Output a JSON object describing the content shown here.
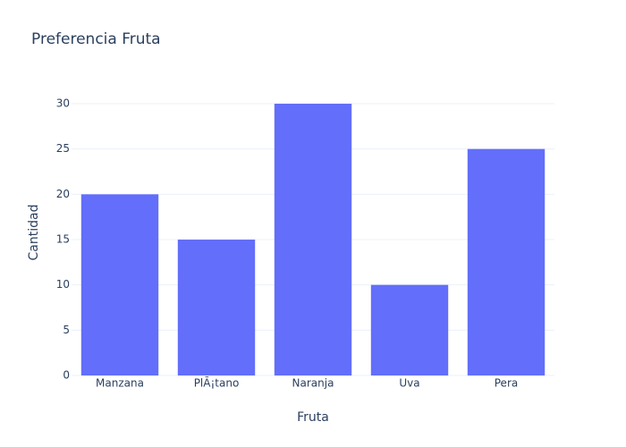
{
  "chart_data": {
    "type": "bar",
    "title": "Preferencia Fruta",
    "x_label": "Fruta",
    "y_label": "Cantidad",
    "categories": [
      "Manzana",
      "PlÃ¡tano",
      "Naranja",
      "Uva",
      "Pera"
    ],
    "values": [
      20,
      15,
      30,
      10,
      25
    ],
    "color": "#636efa",
    "ylim": [
      0,
      31.58
    ],
    "yticks": [
      0,
      5,
      10,
      15,
      20,
      25,
      30
    ],
    "grid": true
  }
}
